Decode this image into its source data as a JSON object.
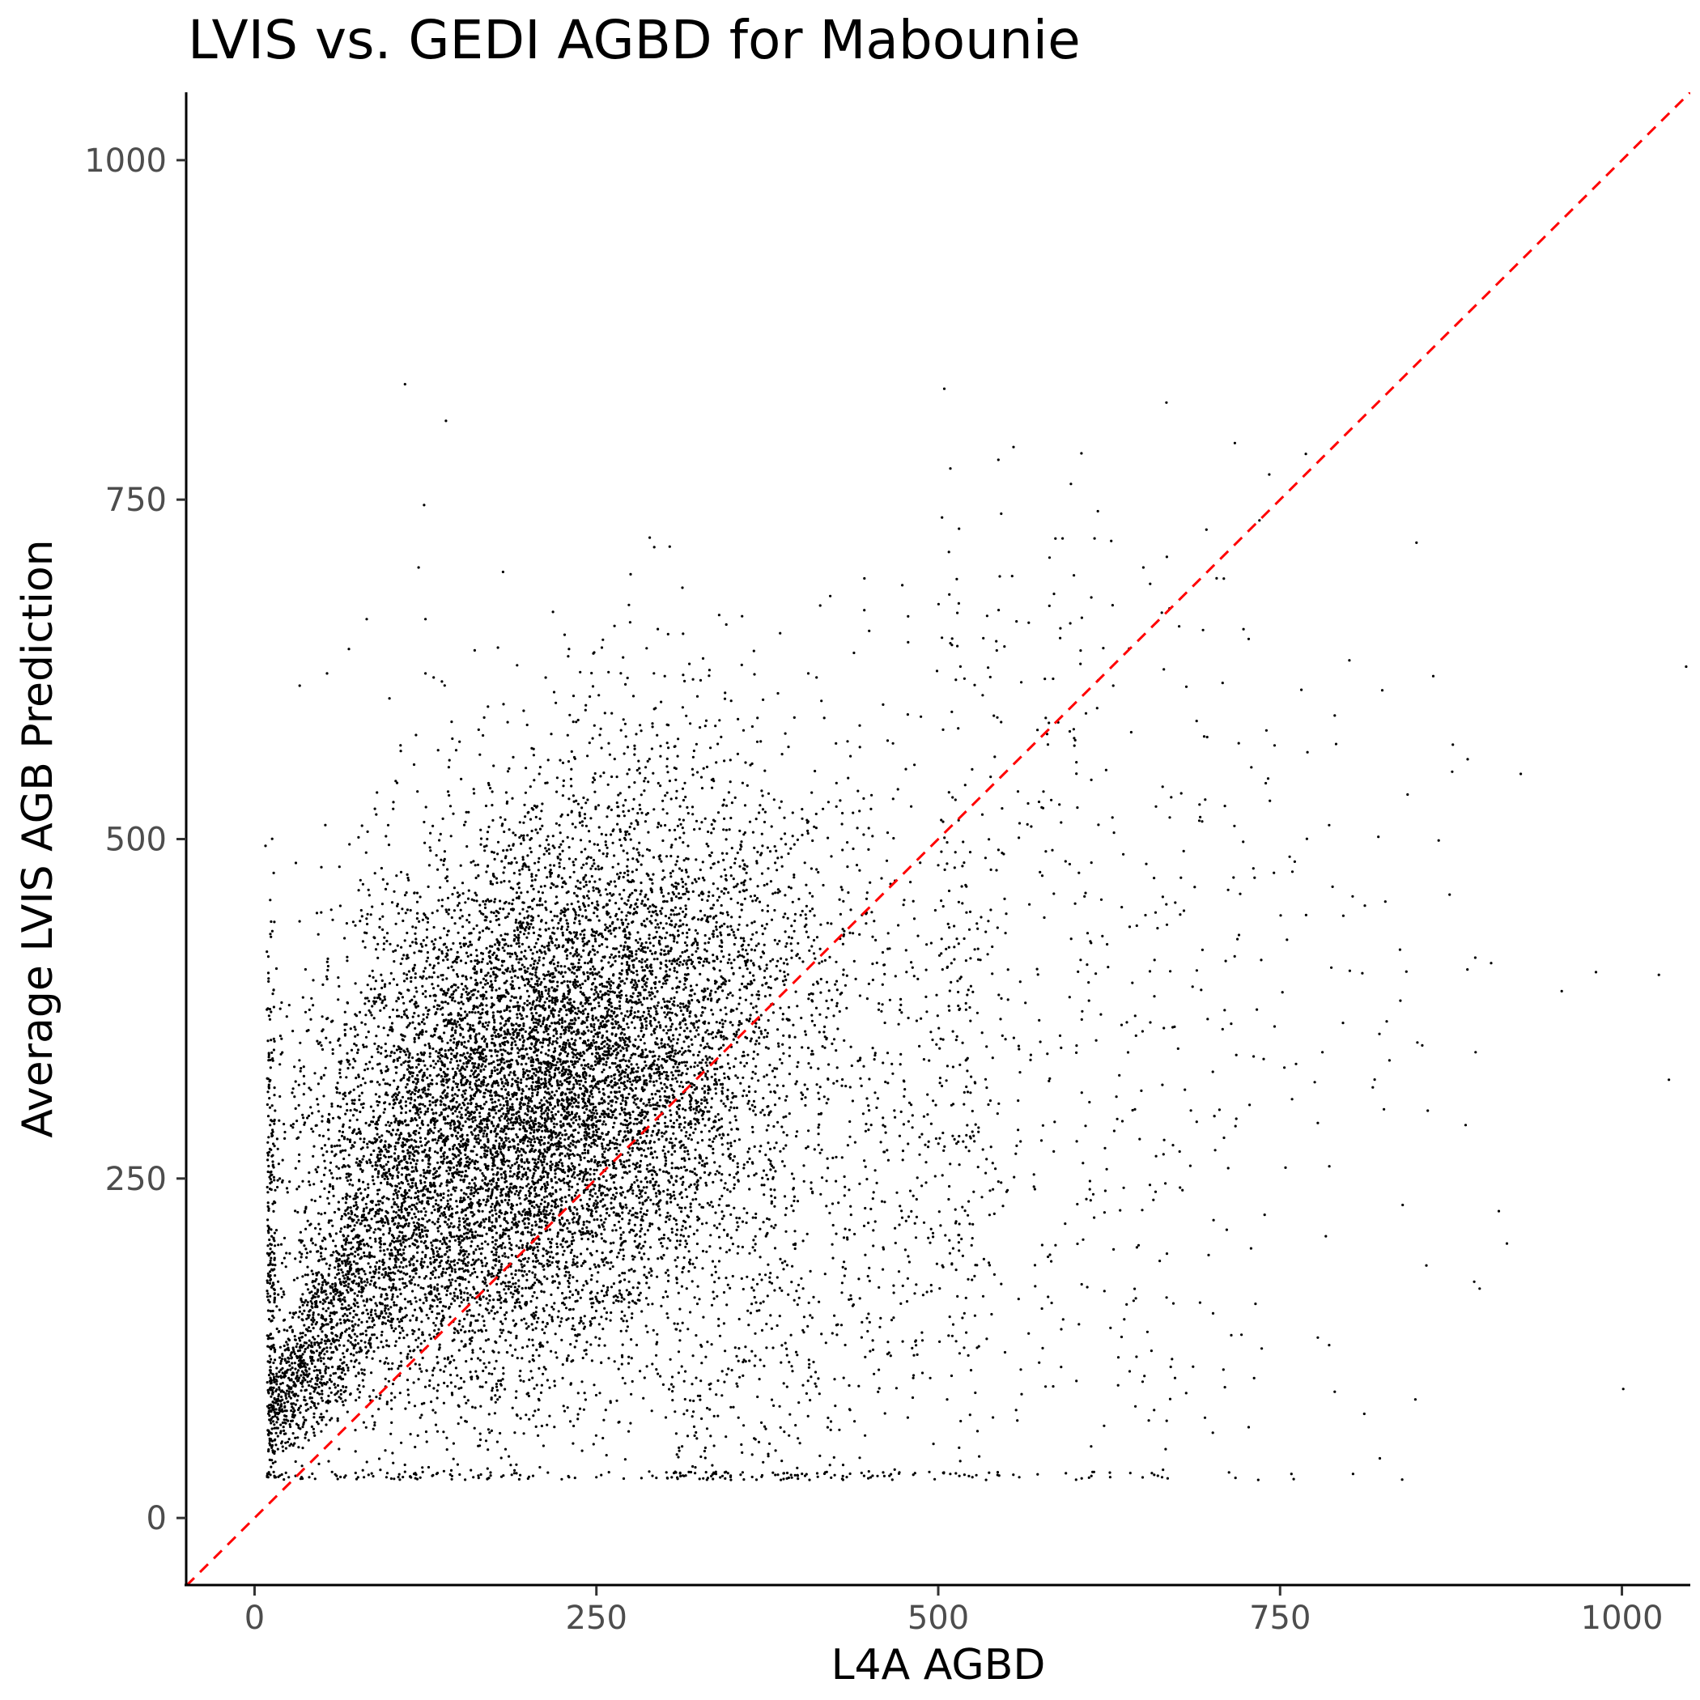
{
  "chart_data": {
    "type": "scatter",
    "title": "LVIS vs. GEDI AGBD for Mabounie",
    "xlabel": "L4A AGBD",
    "ylabel": "Average LVIS AGB Prediction",
    "xlim": [
      -50,
      1050
    ],
    "ylim": [
      -50,
      1050
    ],
    "x_ticks": [
      0,
      250,
      500,
      750,
      1000
    ],
    "y_ticks": [
      0,
      250,
      500,
      750,
      1000
    ],
    "x_tick_labels": [
      "0",
      "250",
      "500",
      "750",
      "1000"
    ],
    "y_tick_labels": [
      "0",
      "250",
      "500",
      "750",
      "1000"
    ],
    "grid": false,
    "legend": "none",
    "point_color": "#000000",
    "reference_line": {
      "type": "identity",
      "slope": 1,
      "intercept": 0,
      "style": "dashed",
      "color": "#ff0000"
    },
    "approx_point_count": 14000,
    "cluster_center": [
      210,
      310
    ],
    "points": [
      [
        110,
        835
      ],
      [
        140,
        808
      ],
      [
        124,
        746
      ],
      [
        289,
        722
      ],
      [
        120,
        700
      ],
      [
        275,
        695
      ],
      [
        446,
        692
      ],
      [
        650,
        700
      ],
      [
        655,
        688
      ],
      [
        421,
        679
      ],
      [
        478,
        664
      ],
      [
        605,
        663
      ],
      [
        125,
        662
      ],
      [
        82,
        662
      ],
      [
        345,
        658
      ],
      [
        533,
        648
      ],
      [
        478,
        645
      ],
      [
        510,
        643
      ],
      [
        69,
        640
      ],
      [
        178,
        641
      ],
      [
        161,
        639
      ],
      [
        230,
        640
      ],
      [
        254,
        641
      ],
      [
        328,
        633
      ],
      [
        318,
        629
      ],
      [
        405,
        622
      ],
      [
        411,
        619
      ],
      [
        192,
        628
      ],
      [
        604,
        629
      ],
      [
        617,
        617
      ],
      [
        578,
        618
      ],
      [
        628,
        613
      ],
      [
        708,
        615
      ],
      [
        862,
        620
      ],
      [
        1047,
        627
      ],
      [
        53,
        622
      ],
      [
        33,
        613
      ],
      [
        665,
        625
      ],
      [
        125,
        622
      ],
      [
        131,
        619
      ],
      [
        137,
        616
      ],
      [
        300,
        620
      ],
      [
        689,
        587
      ],
      [
        790,
        591
      ],
      [
        791,
        570
      ],
      [
        740,
        580
      ],
      [
        746,
        569
      ],
      [
        770,
        564
      ],
      [
        926,
        548
      ],
      [
        693,
        513
      ],
      [
        723,
        498
      ],
      [
        866,
        499
      ],
      [
        757,
        487
      ],
      [
        759,
        476
      ],
      [
        769,
        444
      ],
      [
        812,
        451
      ],
      [
        827,
        454
      ],
      [
        801,
        403
      ],
      [
        981,
        402
      ],
      [
        1027,
        400
      ],
      [
        956,
        388
      ],
      [
        838,
        381
      ],
      [
        781,
        343
      ],
      [
        893,
        343
      ],
      [
        830,
        337
      ],
      [
        746,
        362
      ],
      [
        708,
        360
      ],
      [
        738,
        338
      ],
      [
        718,
        341
      ],
      [
        854,
        348
      ],
      [
        858,
        300
      ],
      [
        826,
        301
      ],
      [
        702,
        296
      ],
      [
        718,
        294
      ],
      [
        709,
        280
      ],
      [
        754,
        258
      ],
      [
        786,
        259
      ],
      [
        910,
        226
      ],
      [
        857,
        186
      ],
      [
        892,
        174
      ],
      [
        672,
        158
      ],
      [
        671,
        117
      ],
      [
        731,
        103
      ],
      [
        790,
        93
      ],
      [
        1001,
        95
      ],
      [
        640,
        108
      ],
      [
        540,
        74
      ],
      [
        590,
        139
      ],
      [
        626,
        140
      ],
      [
        653,
        137
      ],
      [
        609,
        170
      ],
      [
        606,
        205
      ],
      [
        576,
        201
      ],
      [
        537,
        188
      ],
      [
        539,
        150
      ],
      [
        453,
        106
      ],
      [
        398,
        85
      ],
      [
        407,
        104
      ],
      [
        444,
        133
      ],
      [
        474,
        130
      ],
      [
        482,
        105
      ],
      [
        495,
        167
      ],
      [
        503,
        186
      ],
      [
        518,
        193
      ],
      [
        540,
        242
      ],
      [
        546,
        247
      ],
      [
        570,
        244
      ],
      [
        8,
        495
      ],
      [
        14,
        475
      ],
      [
        12,
        428
      ],
      [
        14,
        389
      ],
      [
        12,
        352
      ],
      [
        15,
        300
      ],
      [
        11,
        251
      ],
      [
        16,
        212
      ],
      [
        13,
        171
      ],
      [
        10,
        132
      ],
      [
        14,
        85
      ],
      [
        11,
        55
      ],
      [
        10,
        30
      ],
      [
        20,
        32
      ],
      [
        25,
        30
      ],
      [
        30,
        31
      ],
      [
        35,
        29
      ],
      [
        40,
        30
      ],
      [
        60,
        31
      ],
      [
        80,
        30
      ],
      [
        100,
        29
      ],
      [
        130,
        31
      ],
      [
        160,
        30
      ],
      [
        200,
        29
      ],
      [
        230,
        30
      ],
      [
        270,
        29
      ],
      [
        291,
        31
      ],
      [
        250,
        30
      ],
      [
        190,
        33
      ],
      [
        150,
        32
      ],
      [
        110,
        34
      ]
    ]
  }
}
